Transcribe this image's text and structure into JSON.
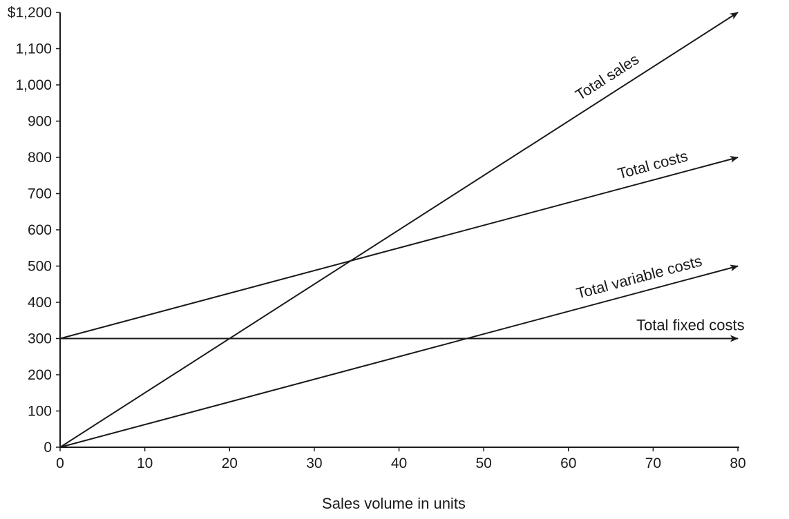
{
  "chart_data": {
    "type": "line",
    "xlabel": "Sales volume in units",
    "ylabel": "",
    "xlim": [
      0,
      80
    ],
    "ylim": [
      0,
      1200
    ],
    "x_ticks": [
      0,
      10,
      20,
      30,
      40,
      50,
      60,
      70,
      80
    ],
    "x_tick_labels": [
      "0",
      "10",
      "20",
      "30",
      "40",
      "50",
      "60",
      "70",
      "80"
    ],
    "y_ticks": [
      0,
      100,
      200,
      300,
      400,
      500,
      600,
      700,
      800,
      900,
      1000,
      1100,
      1200
    ],
    "y_tick_labels": [
      "0",
      "100",
      "200",
      "300",
      "400",
      "500",
      "600",
      "700",
      "800",
      "900",
      "1,000",
      "1,100",
      "$1,200"
    ],
    "grid": false,
    "legend": "none",
    "series": [
      {
        "name": "Total sales",
        "x": [
          0,
          80
        ],
        "y": [
          0,
          1200
        ]
      },
      {
        "name": "Total costs",
        "x": [
          0,
          80
        ],
        "y": [
          300,
          800
        ]
      },
      {
        "name": "Total variable costs",
        "x": [
          0,
          80
        ],
        "y": [
          0,
          500
        ]
      },
      {
        "name": "Total fixed costs",
        "x": [
          0,
          80
        ],
        "y": [
          300,
          300
        ]
      }
    ],
    "line_color": "#1a1a1a"
  }
}
